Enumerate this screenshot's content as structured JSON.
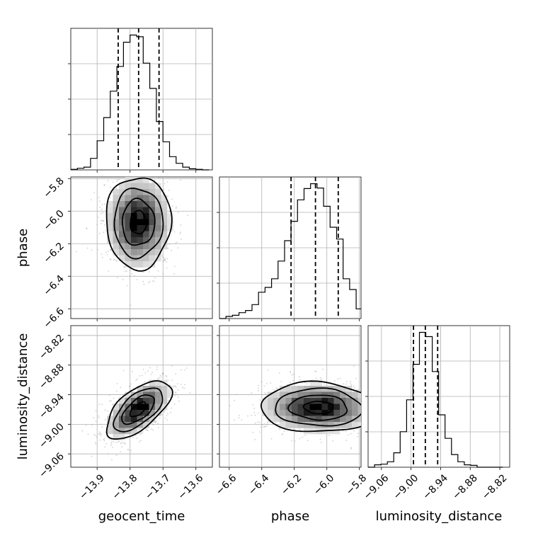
{
  "chart_data": {
    "type": "corner",
    "parameters": [
      "geocent_time",
      "phase",
      "luminosity_distance"
    ],
    "ranges": {
      "geocent_time": [
        -13.98,
        -13.55
      ],
      "phase": [
        -6.66,
        -5.79
      ],
      "luminosity_distance": [
        -9.087,
        -8.8
      ]
    },
    "ticks": {
      "geocent_time": [
        {
          "value": -13.9,
          "label": "−13.9"
        },
        {
          "value": -13.8,
          "label": "−13.8"
        },
        {
          "value": -13.7,
          "label": "−13.7"
        },
        {
          "value": -13.6,
          "label": "−13.6"
        }
      ],
      "phase": [
        {
          "value": -6.6,
          "label": "−6.6"
        },
        {
          "value": -6.4,
          "label": "−6.4"
        },
        {
          "value": -6.2,
          "label": "−6.2"
        },
        {
          "value": -6.0,
          "label": "−6.0"
        },
        {
          "value": -5.8,
          "label": "−5.8"
        }
      ],
      "luminosity_distance": [
        {
          "value": -9.06,
          "label": "−9.06"
        },
        {
          "value": -9.0,
          "label": "−9.00"
        },
        {
          "value": -8.94,
          "label": "−8.94"
        },
        {
          "value": -8.88,
          "label": "−8.88"
        },
        {
          "value": -8.82,
          "label": "−8.82"
        }
      ]
    },
    "quantiles": {
      "geocent_time": [
        -13.836,
        -13.774,
        -13.712
      ],
      "phase": [
        -6.22,
        -6.07,
        -5.93
      ],
      "luminosity_distance": [
        -8.995,
        -8.971,
        -8.946
      ]
    },
    "histograms": {
      "geocent_time": {
        "edges": [
          -13.98,
          -13.96,
          -13.94,
          -13.92,
          -13.9,
          -13.88,
          -13.86,
          -13.84,
          -13.82,
          -13.8,
          -13.78,
          -13.76,
          -13.74,
          -13.72,
          -13.7,
          -13.68,
          -13.66,
          -13.64,
          -13.62,
          -13.6,
          -13.58,
          -13.56
        ],
        "counts": [
          1,
          3,
          5,
          21,
          53,
          95,
          143,
          188,
          232,
          245,
          242,
          194,
          148,
          88,
          51,
          24,
          12,
          5,
          2,
          1,
          0
        ]
      },
      "phase": {
        "edges": [
          -6.66,
          -6.62,
          -6.58,
          -6.54,
          -6.5,
          -6.46,
          -6.42,
          -6.38,
          -6.34,
          -6.3,
          -6.26,
          -6.22,
          -6.18,
          -6.14,
          -6.1,
          -6.06,
          -6.02,
          -5.98,
          -5.94,
          -5.9,
          -5.86,
          -5.82,
          -5.79
        ],
        "counts": [
          0,
          4,
          6,
          11,
          15,
          26,
          49,
          58,
          74,
          107,
          145,
          181,
          221,
          242,
          251,
          243,
          209,
          170,
          148,
          74,
          54,
          18
        ]
      },
      "luminosity_distance": {
        "edges": [
          -9.087,
          -9.074,
          -9.061,
          -9.048,
          -9.035,
          -9.022,
          -9.009,
          -8.996,
          -8.983,
          -8.97,
          -8.957,
          -8.944,
          -8.931,
          -8.918,
          -8.905,
          -8.892,
          -8.879,
          -8.866,
          -8.853,
          -8.84,
          -8.827,
          -8.814
        ],
        "counts": [
          0,
          4,
          5,
          9,
          24,
          59,
          112,
          171,
          224,
          217,
          159,
          87,
          48,
          21,
          9,
          4,
          3,
          0,
          0,
          0,
          0
        ]
      }
    },
    "pairs": [
      {
        "x": "geocent_time",
        "y": "phase",
        "center": [
          -13.775,
          -6.07
        ],
        "sigma": [
          0.047,
          0.135
        ],
        "correlation": 0.0
      },
      {
        "x": "geocent_time",
        "y": "luminosity_distance",
        "center": [
          -13.775,
          -8.97
        ],
        "sigma": [
          0.047,
          0.028
        ],
        "correlation": 0.62
      },
      {
        "x": "phase",
        "y": "luminosity_distance",
        "center": [
          -6.05,
          -8.966
        ],
        "sigma": [
          0.17,
          0.024
        ],
        "correlation": -0.05
      }
    ],
    "contour_levels_sigma": [
      0.5,
      1.0,
      1.5,
      2.0
    ],
    "grid": true,
    "legend": "none"
  }
}
